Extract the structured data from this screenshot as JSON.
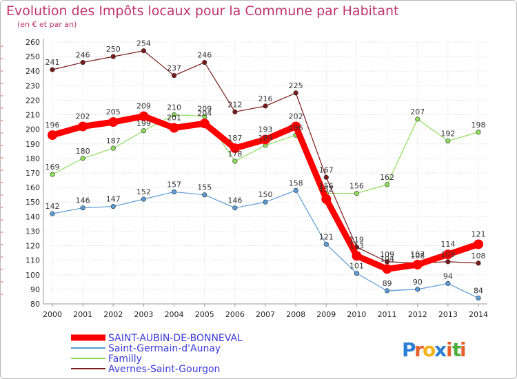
{
  "chart_data": {
    "type": "line",
    "title": "Evolution des Impôts locaux pour la Commune par Habitant",
    "subtitle": "(en € et par an)",
    "x": [
      "2000",
      "2001",
      "2002",
      "2003",
      "2004",
      "2005",
      "2006",
      "2007",
      "2008",
      "2009",
      "2010",
      "2011",
      "2012",
      "2013",
      "2014"
    ],
    "yticks": [
      80,
      90,
      100,
      110,
      120,
      130,
      140,
      150,
      160,
      170,
      180,
      190,
      200,
      210,
      220,
      230,
      240,
      250,
      260
    ],
    "ylim": [
      80,
      260
    ],
    "grid": true,
    "legend_position": "bottom-left",
    "series": [
      {
        "name": "SAINT-AUBIN-DE-BONNEVAL",
        "color": "#ff0000",
        "values": [
          196,
          202,
          205,
          209,
          201,
          204,
          187,
          193,
          202,
          152,
          113,
          104,
          107,
          114,
          121
        ]
      },
      {
        "name": "Saint-Germain-d'Aunay",
        "color": "#5b9bd5",
        "values": [
          142,
          146,
          147,
          152,
          157,
          155,
          146,
          150,
          158,
          121,
          101,
          89,
          90,
          94,
          84
        ]
      },
      {
        "name": "Familly",
        "color": "#8fdb5a",
        "values": [
          169,
          180,
          187,
          199,
          210,
          209,
          178,
          189,
          196,
          156,
          156,
          162,
          207,
          192,
          198
        ]
      },
      {
        "name": "Avernes-Saint-Gourgon",
        "color": "#7a1a1a",
        "values": [
          241,
          246,
          250,
          254,
          237,
          246,
          212,
          216,
          225,
          167,
          119,
          109,
          108,
          109,
          108
        ]
      }
    ]
  },
  "logo": {
    "letters": [
      "P",
      "r",
      "o",
      "x",
      "i",
      "t",
      "i"
    ],
    "colors": [
      "#2a7fd4",
      "#e8602c",
      "#f3b21b",
      "#2a7fd4",
      "#e8602c",
      "#4fae3b",
      "#e8602c"
    ]
  }
}
